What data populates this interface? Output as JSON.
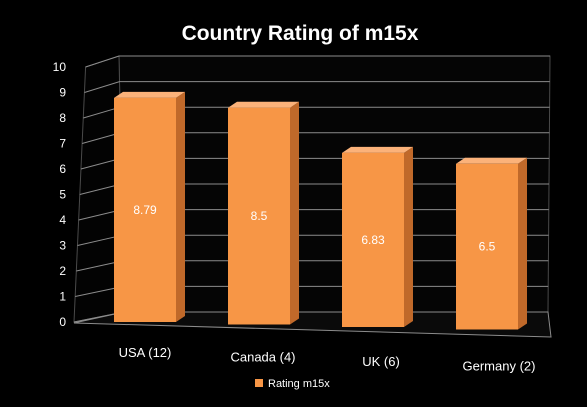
{
  "chart_data": {
    "type": "bar",
    "title": "Country Rating of m15x",
    "categories": [
      "USA (12)",
      "Canada (4)",
      "UK (6)",
      "Germany (2)"
    ],
    "series": [
      {
        "name": "Rating m15x",
        "values": [
          8.79,
          8.5,
          6.83,
          6.5
        ]
      }
    ],
    "data_labels": [
      "8.79",
      "8.5",
      "6.83",
      "6.5"
    ],
    "yticks": [
      "0",
      "1",
      "2",
      "3",
      "4",
      "5",
      "6",
      "7",
      "8",
      "9",
      "10"
    ],
    "ylim": [
      0,
      10
    ],
    "grid": true,
    "three_d": true,
    "legend_position": "bottom",
    "colors": {
      "background": "#000000",
      "bar_front": "#f79646",
      "bar_side": "#c0692a",
      "bar_top": "#fbb27a",
      "grid": "#8c8c8c",
      "text": "#ffffff",
      "data_label": "#ffffff"
    }
  }
}
